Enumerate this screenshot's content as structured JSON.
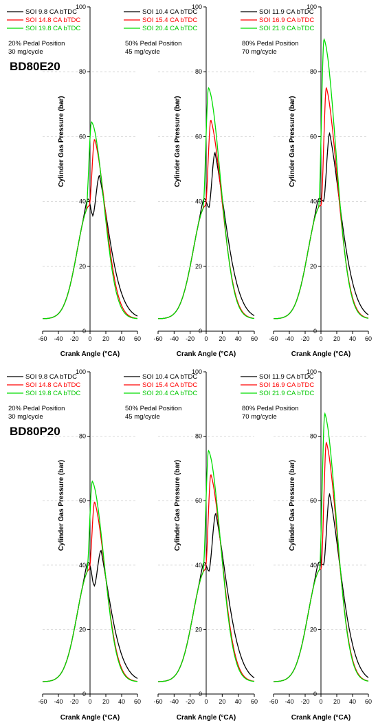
{
  "chart_data": [
    {
      "type": "line",
      "fuel_label": "BD80E20",
      "xlabel": "Crank Angle (°CA)",
      "ylabel": "Cylinder Gas Pressure (bar)",
      "xlim": [
        -60,
        60
      ],
      "ylim": [
        0,
        100
      ],
      "xticks": [
        -60,
        -40,
        -20,
        0,
        20,
        40,
        60
      ],
      "yticks": [
        0,
        20,
        40,
        60,
        80,
        100
      ],
      "annotation": [
        "20% Pedal Position",
        "30 mg/cycle"
      ],
      "legend_position": "top-left",
      "series": [
        {
          "name": "SOI   9.8 CA bTDC",
          "color": "#000000",
          "peak_angle": 12,
          "peak": 48,
          "dip_angle": 3,
          "dip": 35.5
        },
        {
          "name": "SOI 14.8 CA bTDC",
          "color": "#ff0000",
          "peak_angle": 6,
          "peak": 59
        },
        {
          "name": "SOI 19.8 CA bTDC",
          "color": "#00dd00",
          "peak_angle": 2,
          "peak": 64.5
        }
      ]
    },
    {
      "type": "line",
      "fuel_label": "",
      "xlabel": "Crank Angle (°CA)",
      "ylabel": "Cylinder Gas Pressure (bar)",
      "xlim": [
        -60,
        60
      ],
      "ylim": [
        0,
        100
      ],
      "xticks": [
        -60,
        -40,
        -20,
        0,
        20,
        40,
        60
      ],
      "yticks": [
        0,
        20,
        40,
        60,
        80,
        100
      ],
      "annotation": [
        "50% Pedal Position",
        "45 mg/cycle"
      ],
      "legend_position": "top-left",
      "series": [
        {
          "name": "SOI 10.4 CA bTDC",
          "color": "#000000",
          "peak_angle": 11,
          "peak": 55,
          "dip_angle": 3,
          "dip": 38
        },
        {
          "name": "SOI 15.4 CA bTDC",
          "color": "#ff0000",
          "peak_angle": 6,
          "peak": 65
        },
        {
          "name": "SOI 20.4 CA bTDC",
          "color": "#00dd00",
          "peak_angle": 3,
          "peak": 75
        }
      ]
    },
    {
      "type": "line",
      "fuel_label": "",
      "xlabel": "Crank Angle (°CA)",
      "ylabel": "Cylinder Gas Pressure (bar)",
      "xlim": [
        -60,
        60
      ],
      "ylim": [
        0,
        100
      ],
      "xticks": [
        -60,
        -40,
        -20,
        0,
        20,
        40,
        60
      ],
      "yticks": [
        0,
        20,
        40,
        60,
        80,
        100
      ],
      "annotation": [
        "80% Pedal Position",
        "70 mg/cycle"
      ],
      "legend_position": "top-left",
      "series": [
        {
          "name": "SOI 11.9 CA bTDC",
          "color": "#000000",
          "peak_angle": 11,
          "peak": 61,
          "dip_angle": 3,
          "dip": 40
        },
        {
          "name": "SOI 16.9 CA bTDC",
          "color": "#ff0000",
          "peak_angle": 7,
          "peak": 75
        },
        {
          "name": "SOI 21.9 CA bTDC",
          "color": "#00dd00",
          "peak_angle": 4,
          "peak": 90
        }
      ]
    },
    {
      "type": "line",
      "fuel_label": "BD80P20",
      "xlabel": "Crank Angle (°CA)",
      "ylabel": "Cylinder Gas Pressure (bar)",
      "xlim": [
        -60,
        60
      ],
      "ylim": [
        0,
        100
      ],
      "xticks": [
        -60,
        -40,
        -20,
        0,
        20,
        40,
        60
      ],
      "yticks": [
        0,
        20,
        40,
        60,
        80,
        100
      ],
      "annotation": [
        "20% Pedal Position",
        "30 mg/cycle"
      ],
      "legend_position": "top-left",
      "series": [
        {
          "name": "SOI   9.8 CA bTDC",
          "color": "#000000",
          "peak_angle": 14,
          "peak": 44.5,
          "dip_angle": 5,
          "dip": 33.5
        },
        {
          "name": "SOI 14.8 CA bTDC",
          "color": "#ff0000",
          "peak_angle": 6,
          "peak": 59.5
        },
        {
          "name": "SOI 19.8 CA bTDC",
          "color": "#00dd00",
          "peak_angle": 3,
          "peak": 66
        }
      ]
    },
    {
      "type": "line",
      "fuel_label": "",
      "xlabel": "Crank Angle (°CA)",
      "ylabel": "Cylinder Gas Pressure (bar)",
      "xlim": [
        -60,
        60
      ],
      "ylim": [
        0,
        100
      ],
      "xticks": [
        -60,
        -40,
        -20,
        0,
        20,
        40,
        60
      ],
      "yticks": [
        0,
        20,
        40,
        60,
        80,
        100
      ],
      "annotation": [
        "50% Pedal Position",
        "45 mg/cycle"
      ],
      "legend_position": "top-left",
      "series": [
        {
          "name": "SOI 10.4 CA bTDC",
          "color": "#000000",
          "peak_angle": 12,
          "peak": 56,
          "dip_angle": 3,
          "dip": 38
        },
        {
          "name": "SOI 15.4 CA bTDC",
          "color": "#ff0000",
          "peak_angle": 6,
          "peak": 68
        },
        {
          "name": "SOI 20.4 CA bTDC",
          "color": "#00dd00",
          "peak_angle": 3,
          "peak": 75.5
        }
      ]
    },
    {
      "type": "line",
      "fuel_label": "",
      "xlabel": "Crank Angle (°CA)",
      "ylabel": "Cylinder Gas Pressure (bar)",
      "xlim": [
        -60,
        60
      ],
      "ylim": [
        0,
        100
      ],
      "xticks": [
        -60,
        -40,
        -20,
        0,
        20,
        40,
        60
      ],
      "yticks": [
        0,
        20,
        40,
        60,
        80,
        100
      ],
      "annotation": [
        "80% Pedal Position",
        "70 mg/cycle"
      ],
      "legend_position": "top-left",
      "series": [
        {
          "name": "SOI 11.9 CA bTDC",
          "color": "#000000",
          "peak_angle": 11,
          "peak": 62,
          "dip_angle": 3,
          "dip": 40
        },
        {
          "name": "SOI 16.9 CA bTDC",
          "color": "#ff0000",
          "peak_angle": 7,
          "peak": 78
        },
        {
          "name": "SOI 21.9 CA bTDC",
          "color": "#00dd00",
          "peak_angle": 5,
          "peak": 87
        }
      ]
    }
  ]
}
